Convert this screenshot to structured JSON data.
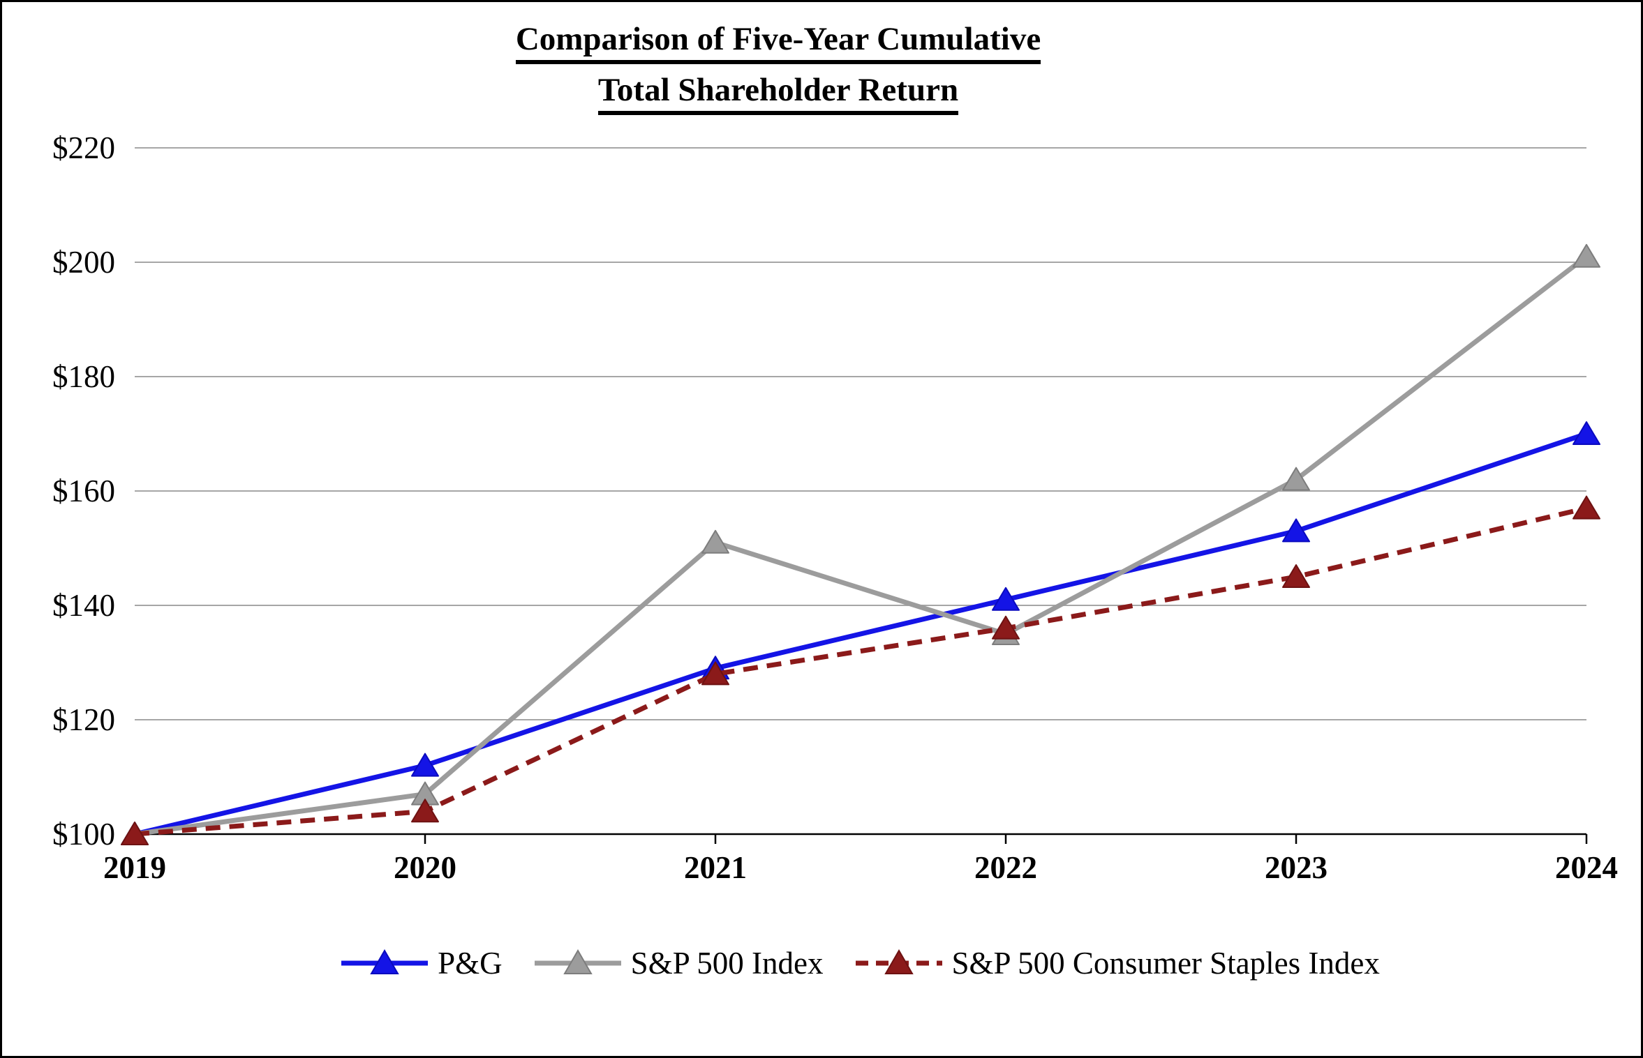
{
  "title": {
    "line1": "Comparison of Five-Year Cumulative",
    "line2": "Total Shareholder Return"
  },
  "chart_data": {
    "type": "line",
    "categories": [
      "2019",
      "2020",
      "2021",
      "2022",
      "2023",
      "2024"
    ],
    "series": [
      {
        "name": "P&G",
        "values": [
          100,
          112,
          129,
          141,
          153,
          170
        ],
        "color": "#1414E6",
        "marker_border": "#0A0ABF",
        "marker": "triangle",
        "line_style": "solid"
      },
      {
        "name": "S&P 500 Index",
        "values": [
          100,
          107,
          151,
          135,
          162,
          201
        ],
        "color": "#9C9C9C",
        "marker_border": "#7D7D7D",
        "marker": "triangle",
        "line_style": "solid"
      },
      {
        "name": "S&P 500 Consumer Staples Index",
        "values": [
          100,
          104,
          128,
          136,
          145,
          157
        ],
        "color": "#8B1A1A",
        "marker_border": "#6E1212",
        "marker": "triangle",
        "line_style": "dashed"
      }
    ],
    "y_axis": {
      "min": 100,
      "max": 220,
      "step": 20,
      "tick_labels": [
        "$100",
        "$120",
        "$140",
        "$160",
        "$180",
        "$200",
        "$220"
      ]
    },
    "x_axis": {
      "tick_labels": [
        "2019",
        "2020",
        "2021",
        "2022",
        "2023",
        "2024"
      ]
    },
    "ylim": [
      100,
      220
    ],
    "grid": true,
    "legend_position": "bottom",
    "colors": {
      "gridline": "#A6A6A6",
      "axis": "#000000",
      "background": "#FFFFFF"
    }
  }
}
